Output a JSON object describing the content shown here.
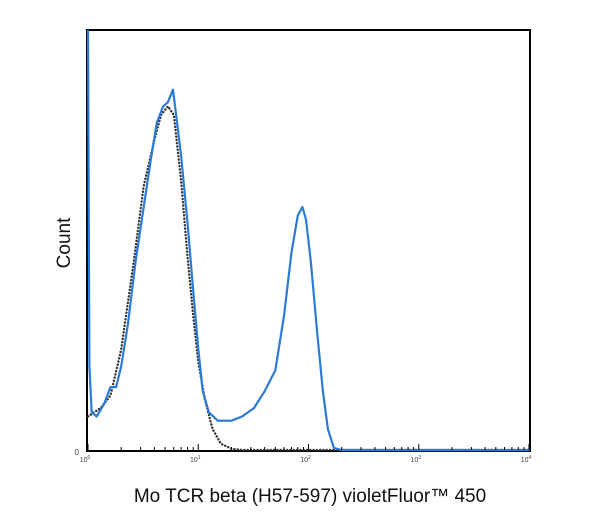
{
  "chart_data": {
    "type": "line",
    "xlabel": "Mo TCR beta (H57-597) violetFluor™ 450",
    "ylabel": "Count",
    "x_scale": "log",
    "xlim": [
      1,
      10000
    ],
    "ylim": [
      0,
      100
    ],
    "y_ticks": [
      "0"
    ],
    "x_ticks": [
      {
        "value": 1,
        "base": "10",
        "exp": "0"
      },
      {
        "value": 10,
        "base": "10",
        "exp": "1"
      },
      {
        "value": 100,
        "base": "10",
        "exp": "2"
      },
      {
        "value": 1000,
        "base": "10",
        "exp": "3"
      },
      {
        "value": 10000,
        "base": "10",
        "exp": "4"
      }
    ],
    "grid": false,
    "series": [
      {
        "style": "dotted",
        "color": "#333333",
        "points": [
          [
            1,
            8
          ],
          [
            1.3,
            10
          ],
          [
            1.6,
            13
          ],
          [
            2.0,
            24
          ],
          [
            2.6,
            45
          ],
          [
            3.2,
            63
          ],
          [
            4.0,
            74
          ],
          [
            4.6,
            80
          ],
          [
            5.3,
            82
          ],
          [
            6.0,
            80
          ],
          [
            7.0,
            64
          ],
          [
            8.0,
            46
          ],
          [
            9.0,
            32
          ],
          [
            10,
            21
          ],
          [
            11.5,
            12
          ],
          [
            13.5,
            5
          ],
          [
            16,
            1.5
          ],
          [
            20,
            0.3
          ],
          [
            25,
            0
          ],
          [
            100,
            0
          ],
          [
            10000,
            0
          ]
        ]
      },
      {
        "style": "solid",
        "color": "#2b7bd6",
        "points": [
          [
            1,
            100
          ],
          [
            1.03,
            20
          ],
          [
            1.08,
            9
          ],
          [
            1.2,
            8
          ],
          [
            1.4,
            11
          ],
          [
            1.6,
            15
          ],
          [
            1.8,
            15
          ],
          [
            2.0,
            20
          ],
          [
            2.3,
            30
          ],
          [
            2.7,
            45
          ],
          [
            3.2,
            58
          ],
          [
            3.7,
            69
          ],
          [
            4.2,
            78
          ],
          [
            4.8,
            82
          ],
          [
            5.3,
            83
          ],
          [
            5.9,
            86
          ],
          [
            6.3,
            80
          ],
          [
            7.0,
            70
          ],
          [
            8.0,
            54
          ],
          [
            9.0,
            38
          ],
          [
            10,
            24
          ],
          [
            11,
            14
          ],
          [
            12.5,
            9
          ],
          [
            15,
            7
          ],
          [
            20,
            7
          ],
          [
            25,
            8
          ],
          [
            32,
            10
          ],
          [
            40,
            14
          ],
          [
            50,
            19
          ],
          [
            60,
            32
          ],
          [
            70,
            47
          ],
          [
            80,
            56
          ],
          [
            88,
            58
          ],
          [
            95,
            55
          ],
          [
            105,
            45
          ],
          [
            120,
            28
          ],
          [
            135,
            14
          ],
          [
            150,
            5
          ],
          [
            170,
            0.5
          ],
          [
            200,
            0
          ],
          [
            1000,
            0
          ],
          [
            10000,
            0
          ]
        ]
      }
    ]
  }
}
